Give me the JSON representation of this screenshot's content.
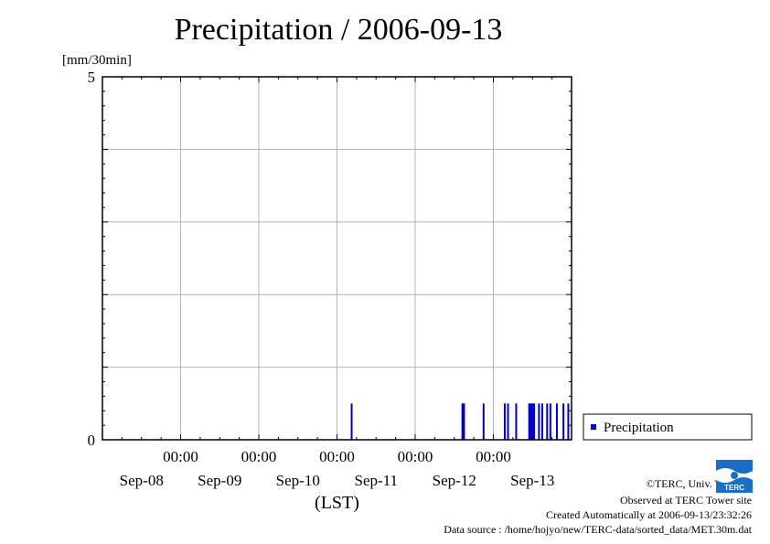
{
  "title": "Precipitation / 2006-09-13",
  "footer": {
    "copyright": "©TERC, Univ. Tsukuba",
    "site": "Observed at TERC Tower site",
    "created": "Created Automatically at 2006-09-13/23:32:26",
    "source": "Data source : /home/hojyo/new/TERC-data/sorted_data/MET.30m.dat"
  },
  "logo_text": "TERC",
  "chart_data": {
    "type": "bar",
    "title": "Precipitation / 2006-09-13",
    "ylabel": "[mm/30min]",
    "xlabel": "(LST)",
    "ylim": [
      0,
      5
    ],
    "y_tick_labels": [
      "0",
      "5"
    ],
    "xlim_days": [
      0,
      6
    ],
    "x_time_labels": [
      "00:00",
      "00:00",
      "00:00",
      "00:00",
      "00:00"
    ],
    "x_date_labels": [
      "Sep-08",
      "Sep-09",
      "Sep-10",
      "Sep-11",
      "Sep-12",
      "Sep-13"
    ],
    "grid": true,
    "legend": {
      "position": "right",
      "entries": [
        "Precipitation"
      ]
    },
    "series": [
      {
        "name": "Precipitation",
        "color": "#0000cc",
        "points": [
          {
            "x": "2006-09-11 04:30",
            "y": 0.5
          },
          {
            "x": "2006-09-12 14:30",
            "y": 0.5
          },
          {
            "x": "2006-09-12 15:00",
            "y": 0.5
          },
          {
            "x": "2006-09-12 21:00",
            "y": 0.5
          },
          {
            "x": "2006-09-13 03:30",
            "y": 0.5
          },
          {
            "x": "2006-09-13 04:30",
            "y": 0.5
          },
          {
            "x": "2006-09-13 07:00",
            "y": 0.5
          },
          {
            "x": "2006-09-13 11:00",
            "y": 0.5
          },
          {
            "x": "2006-09-13 11:30",
            "y": 0.5
          },
          {
            "x": "2006-09-13 12:00",
            "y": 0.5
          },
          {
            "x": "2006-09-13 12:30",
            "y": 0.5
          },
          {
            "x": "2006-09-13 14:00",
            "y": 0.5
          },
          {
            "x": "2006-09-13 15:00",
            "y": 0.5
          },
          {
            "x": "2006-09-13 16:30",
            "y": 0.5
          },
          {
            "x": "2006-09-13 17:30",
            "y": 0.5
          },
          {
            "x": "2006-09-13 19:30",
            "y": 0.5
          },
          {
            "x": "2006-09-13 21:30",
            "y": 0.5
          },
          {
            "x": "2006-09-13 23:00",
            "y": 0.5
          }
        ]
      }
    ]
  }
}
